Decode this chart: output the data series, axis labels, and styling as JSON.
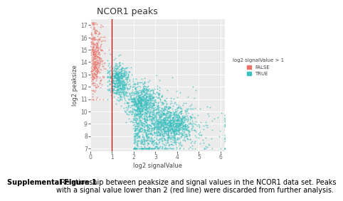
{
  "title": "NCOR1 peaks",
  "xlabel": "log2 signalValue",
  "ylabel": "log2 peaksize",
  "legend_title": "log2 signalValue > 1",
  "legend_labels": [
    "FALSE",
    "TRUE"
  ],
  "false_color": "#E8736A",
  "true_color": "#3BBFBF",
  "point_size": 2,
  "alpha": 0.65,
  "bg_color": "#EBEBEB",
  "grid_color": "#FFFFFF",
  "vline_x": 1.0,
  "vline_color": "#CC0000",
  "vline_lw": 0.9,
  "seed": 42,
  "xlim": [
    0.0,
    6.2
  ],
  "ylim": [
    6.8,
    17.5
  ],
  "xticks": [
    0,
    1,
    2,
    3,
    4,
    5,
    6
  ],
  "yticks": [
    7,
    8,
    9,
    10,
    11,
    12,
    13,
    14,
    15,
    16,
    17
  ],
  "caption_bold": "Supplemental Figure 1",
  "caption_normal": ". Relationship between peaksize and signal values in the NCOR1 data set. Peaks\nwith a signal value lower than 2 (red line) were discarded from further analysis.",
  "caption_fontsize": 7.0,
  "title_fontsize": 9,
  "axis_label_fontsize": 6,
  "tick_fontsize": 5.5,
  "legend_title_fontsize": 5,
  "legend_fontsize": 5
}
